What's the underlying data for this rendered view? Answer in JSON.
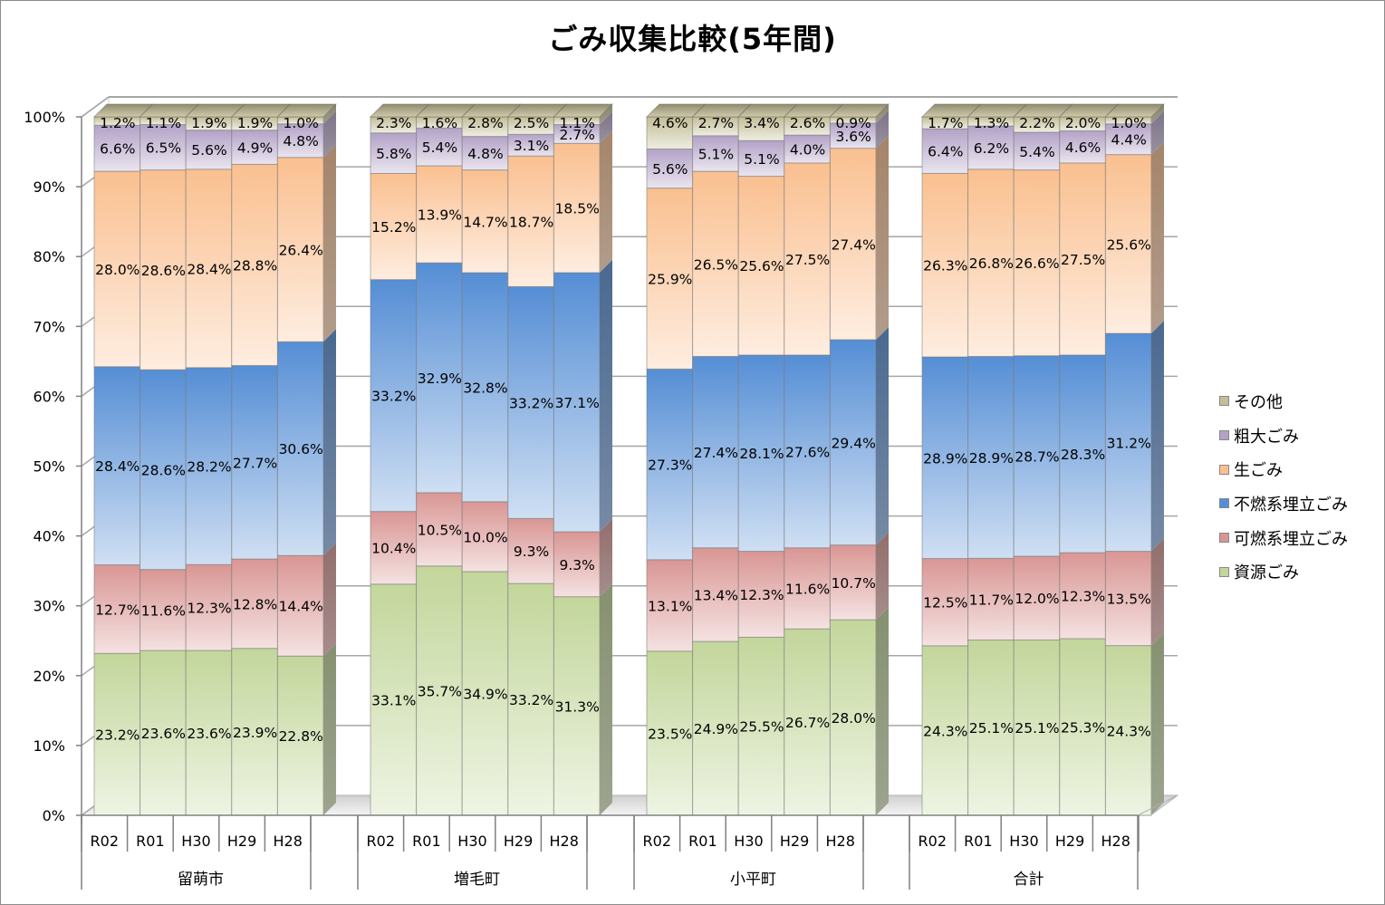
{
  "chart_data": {
    "type": "bar",
    "stacked": "percent",
    "title": "ごみ収集比較(5年間)",
    "xlabel": "",
    "ylabel": "",
    "ylim": [
      0,
      100
    ],
    "yticks": [
      "0%",
      "10%",
      "20%",
      "30%",
      "40%",
      "50%",
      "60%",
      "70%",
      "80%",
      "90%",
      "100%"
    ],
    "grid": true,
    "legend_position": "right",
    "groups": [
      {
        "name": "留萌市",
        "categories": [
          "R02",
          "R01",
          "H30",
          "H29",
          "H28"
        ]
      },
      {
        "name": "増毛町",
        "categories": [
          "R02",
          "R01",
          "H30",
          "H29",
          "H28"
        ]
      },
      {
        "name": "小平町",
        "categories": [
          "R02",
          "R01",
          "H30",
          "H29",
          "H28"
        ]
      },
      {
        "name": "合計",
        "categories": [
          "R02",
          "R01",
          "H30",
          "H29",
          "H28"
        ]
      }
    ],
    "series": [
      {
        "name": "資源ごみ",
        "color": "#c3d69b",
        "values": [
          [
            23.2,
            23.6,
            23.6,
            23.9,
            22.8
          ],
          [
            33.1,
            35.7,
            34.9,
            33.2,
            31.3
          ],
          [
            23.5,
            24.9,
            25.5,
            26.7,
            28.0
          ],
          [
            24.3,
            25.1,
            25.1,
            25.3,
            24.3
          ]
        ]
      },
      {
        "name": "可燃系埋立ごみ",
        "color": "#d99694",
        "values": [
          [
            12.7,
            11.6,
            12.3,
            12.8,
            14.4
          ],
          [
            10.4,
            10.5,
            10.0,
            9.3,
            9.3
          ],
          [
            13.1,
            13.4,
            12.3,
            11.6,
            10.7
          ],
          [
            12.5,
            11.7,
            12.0,
            12.3,
            13.5
          ]
        ]
      },
      {
        "name": "不燃系埋立ごみ",
        "color": "#558ed5",
        "values": [
          [
            28.4,
            28.6,
            28.2,
            27.7,
            30.6
          ],
          [
            33.2,
            32.9,
            32.8,
            33.2,
            37.1
          ],
          [
            27.3,
            27.4,
            28.1,
            27.6,
            29.4
          ],
          [
            28.9,
            28.9,
            28.7,
            28.3,
            31.2
          ]
        ]
      },
      {
        "name": "生ごみ",
        "color": "#fac090",
        "values": [
          [
            28.0,
            28.6,
            28.4,
            28.8,
            26.4
          ],
          [
            15.2,
            13.9,
            14.7,
            18.7,
            18.5
          ],
          [
            25.9,
            26.5,
            25.6,
            27.5,
            27.4
          ],
          [
            26.3,
            26.8,
            26.6,
            27.5,
            25.6
          ]
        ]
      },
      {
        "name": "粗大ごみ",
        "color": "#b3a2c7",
        "values": [
          [
            6.6,
            6.5,
            5.6,
            4.9,
            4.8
          ],
          [
            5.8,
            5.4,
            4.8,
            3.1,
            2.7
          ],
          [
            5.6,
            5.1,
            5.1,
            4.0,
            3.6
          ],
          [
            6.4,
            6.2,
            5.4,
            4.6,
            4.4
          ]
        ]
      },
      {
        "name": "その他",
        "color": "#c4bd97",
        "values": [
          [
            1.2,
            1.1,
            1.9,
            1.9,
            1.0
          ],
          [
            2.3,
            1.6,
            2.8,
            2.5,
            1.1
          ],
          [
            4.6,
            2.7,
            3.4,
            2.6,
            0.9
          ],
          [
            1.7,
            1.3,
            2.2,
            2.0,
            1.0
          ]
        ]
      }
    ],
    "data_labels": [
      [
        [
          "23.2%",
          "23.6%",
          "23.6%",
          "23.9%",
          "22.8%"
        ],
        [
          "33.1%",
          "35.7%",
          "34.9%",
          "33.2%",
          "31.3%"
        ],
        [
          "23.5%",
          "24.9%",
          "25.5%",
          "26.7%",
          "28.0%"
        ],
        [
          "24.3%",
          "25.1%",
          "25.1%",
          "25.3%",
          "24.3%"
        ]
      ],
      [
        [
          "12.7%",
          "11.6%",
          "12.3%",
          "12.8%",
          "14.4%"
        ],
        [
          "10.4%",
          "10.5%",
          "10.0%",
          "9.3%",
          "9.3%"
        ],
        [
          "13.1%",
          "13.4%",
          "12.3%",
          "11.6%",
          "10.7%"
        ],
        [
          "12.5%",
          "11.7%",
          "12.0%",
          "12.3%",
          "13.5%"
        ]
      ],
      [
        [
          "28.4%",
          "28.6%",
          "28.2%",
          "27.7%",
          "30.6%"
        ],
        [
          "33.2%",
          "32.9%",
          "32.8%",
          "33.2%",
          "37.1%"
        ],
        [
          "27.3%",
          "27.4%",
          "28.1%",
          "27.6%",
          "29.4%"
        ],
        [
          "28.9%",
          "28.9%",
          "28.7%",
          "28.3%",
          "31.2%"
        ]
      ],
      [
        [
          "28.0%",
          "28.6%",
          "28.4%",
          "28.8%",
          "26.4%"
        ],
        [
          "15.2%",
          "13.9%",
          "14.7%",
          "18.7%",
          "18.5%"
        ],
        [
          "25.9%",
          "26.5%",
          "25.6%",
          "27.5%",
          "27.4%"
        ],
        [
          "26.3%",
          "26.8%",
          "26.6%",
          "27.5%",
          "25.6%"
        ]
      ],
      [
        [
          "6.6%",
          "6.5%",
          "5.6%",
          "4.9%",
          "4.8%"
        ],
        [
          "5.8%",
          "5.4%",
          "4.8%",
          "3.1%",
          "2.7%"
        ],
        [
          "5.6%",
          "5.1%",
          "5.1%",
          "4.0%",
          "3.6%"
        ],
        [
          "6.4%",
          "6.2%",
          "5.4%",
          "4.6%",
          "4.4%"
        ]
      ],
      [
        [
          "1.2%",
          "1.1%",
          "1.9%",
          "1.9%",
          "1.0%"
        ],
        [
          "2.3%",
          "1.6%",
          "2.8%",
          "2.5%",
          "1.1%"
        ],
        [
          "4.6%",
          "2.7%",
          "3.4%",
          "2.6%",
          "0.9%"
        ],
        [
          "1.7%",
          "1.3%",
          "2.2%",
          "2.0%",
          "1.0%"
        ]
      ]
    ]
  },
  "legend": {
    "items": [
      {
        "label": "その他",
        "color": "#c4bd97"
      },
      {
        "label": "粗大ごみ",
        "color": "#b3a2c7"
      },
      {
        "label": "生ごみ",
        "color": "#fac090"
      },
      {
        "label": "不燃系埋立ごみ",
        "color": "#558ed5"
      },
      {
        "label": "可燃系埋立ごみ",
        "color": "#d99694"
      },
      {
        "label": "資源ごみ",
        "color": "#c3d69b"
      }
    ]
  }
}
